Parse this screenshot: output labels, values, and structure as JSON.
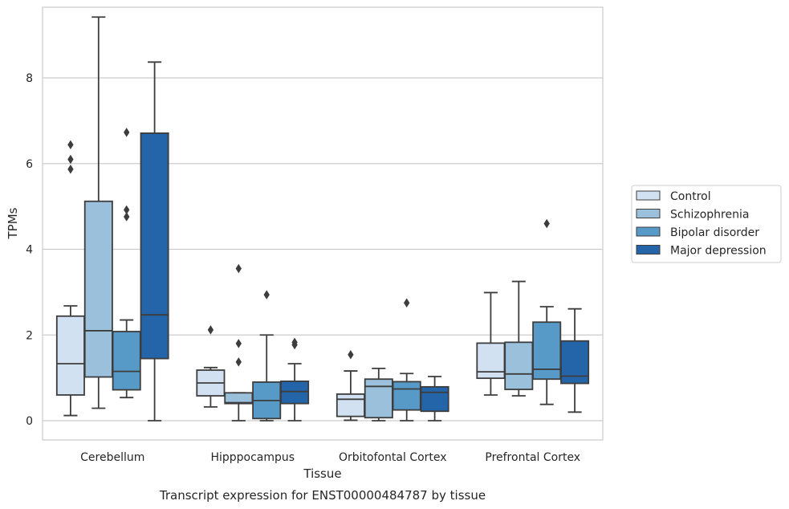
{
  "caption": "Transcript expression for ENST00000484787 by tissue",
  "colors": {
    "series": [
      "#d1e1f2",
      "#9ac0db",
      "#5799c7",
      "#2464a8"
    ],
    "edge": "#3d3d3d",
    "grid": "#cccccc",
    "frame": "#cccccc"
  },
  "chart_data": {
    "type": "box",
    "xlabel": "Tissue",
    "ylabel": "TPMs",
    "ylim": [
      -0.45,
      9.65
    ],
    "yticks": [
      0,
      2,
      4,
      6,
      8
    ],
    "grid": "horizontal",
    "legend_position": "right",
    "categories": [
      "Cerebellum",
      "Hipppocampus",
      "Orbitofontal Cortex",
      "Prefrontal Cortex"
    ],
    "series": [
      {
        "name": "Control",
        "boxes": [
          {
            "whislo": 0.12,
            "q1": 0.6,
            "med": 1.33,
            "q3": 2.44,
            "whishi": 2.68,
            "fliers": [
              6.44,
              6.1,
              5.87
            ]
          },
          {
            "whislo": 0.32,
            "q1": 0.58,
            "med": 0.88,
            "q3": 1.18,
            "whishi": 1.24,
            "fliers": [
              2.12
            ]
          },
          {
            "whislo": 0.01,
            "q1": 0.1,
            "med": 0.5,
            "q3": 0.62,
            "whishi": 1.16,
            "fliers": [
              1.54
            ]
          },
          {
            "whislo": 0.6,
            "q1": 0.99,
            "med": 1.14,
            "q3": 1.81,
            "whishi": 2.99,
            "fliers": []
          }
        ]
      },
      {
        "name": "Schizophrenia",
        "boxes": [
          {
            "whislo": 0.29,
            "q1": 1.02,
            "med": 2.1,
            "q3": 5.12,
            "whishi": 9.42,
            "fliers": []
          },
          {
            "whislo": 0.0,
            "q1": 0.4,
            "med": 0.42,
            "q3": 0.65,
            "whishi": 0.65,
            "fliers": [
              3.55,
              1.8,
              1.37
            ]
          },
          {
            "whislo": 0.0,
            "q1": 0.07,
            "med": 0.8,
            "q3": 0.97,
            "whishi": 1.22,
            "fliers": []
          },
          {
            "whislo": 0.58,
            "q1": 0.73,
            "med": 1.09,
            "q3": 1.83,
            "whishi": 3.25,
            "fliers": []
          }
        ]
      },
      {
        "name": "Bipolar disorder",
        "boxes": [
          {
            "whislo": 0.54,
            "q1": 0.72,
            "med": 1.15,
            "q3": 2.08,
            "whishi": 2.35,
            "fliers": [
              6.73,
              4.92,
              4.76
            ]
          },
          {
            "whislo": 0.0,
            "q1": 0.05,
            "med": 0.47,
            "q3": 0.9,
            "whishi": 2.0,
            "fliers": [
              2.94
            ]
          },
          {
            "whislo": 0.0,
            "q1": 0.25,
            "med": 0.74,
            "q3": 0.91,
            "whishi": 1.1,
            "fliers": [
              2.75
            ]
          },
          {
            "whislo": 0.38,
            "q1": 0.97,
            "med": 1.2,
            "q3": 2.3,
            "whishi": 2.66,
            "fliers": [
              4.6
            ]
          }
        ]
      },
      {
        "name": "Major depression",
        "boxes": [
          {
            "whislo": 0.0,
            "q1": 1.45,
            "med": 2.47,
            "q3": 6.71,
            "whishi": 8.37,
            "fliers": []
          },
          {
            "whislo": 0.0,
            "q1": 0.4,
            "med": 0.68,
            "q3": 0.92,
            "whishi": 1.33,
            "fliers": [
              1.83,
              1.77
            ]
          },
          {
            "whislo": 0.0,
            "q1": 0.22,
            "med": 0.66,
            "q3": 0.79,
            "whishi": 1.03,
            "fliers": []
          },
          {
            "whislo": 0.2,
            "q1": 0.87,
            "med": 1.04,
            "q3": 1.86,
            "whishi": 2.61,
            "fliers": []
          }
        ]
      }
    ]
  }
}
